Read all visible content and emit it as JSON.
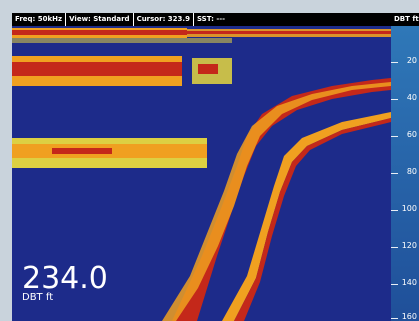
{
  "status_bar": {
    "freq": "Freq: 50kHz",
    "view": "View: Standard",
    "cursor": "Cursor: 323.9",
    "sst": "SST: ---",
    "units": "DBT ft"
  },
  "depth_scale": {
    "labels": [
      "20",
      "40",
      "60",
      "80",
      "100",
      "120",
      "140",
      "160"
    ]
  },
  "readout": {
    "value": "234.0",
    "unit": "DBT  ft"
  },
  "colors": {
    "water": "#1d2b8a",
    "strong_return": "#c4281a",
    "medium_return": "#f0a020",
    "weak_return": "#f3e23a",
    "scale_bg": "#2f78b8"
  }
}
